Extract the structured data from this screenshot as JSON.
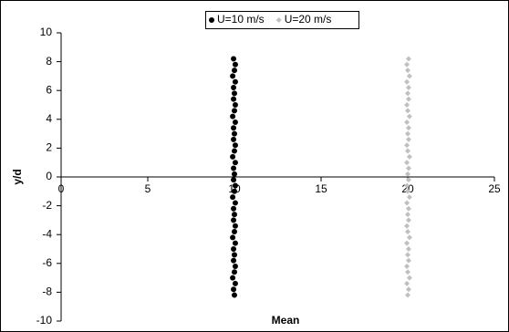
{
  "chart_data": {
    "type": "scatter",
    "x_label": "Mean",
    "y_label": "y/d",
    "xlim": [
      0,
      25
    ],
    "xticks": [
      0,
      5,
      10,
      15,
      20,
      25
    ],
    "ylim": [
      -10,
      10
    ],
    "yticks": [
      -10,
      -8,
      -6,
      -4,
      -2,
      0,
      2,
      4,
      6,
      8,
      10
    ],
    "legend": "top",
    "series": [
      {
        "name": "U=10 m/s",
        "color": "#000000",
        "marker": "circle",
        "x": [
          10,
          9.95,
          10.05,
          9.9,
          10,
          10.05,
          9.95,
          10,
          9.95,
          10.05,
          9.9,
          10,
          10.05,
          9.95,
          10,
          9.95,
          10.05,
          9.9,
          10,
          10.05,
          9.95,
          10,
          9.95,
          10.05,
          9.9,
          10,
          10.05,
          9.95,
          10,
          9.95,
          10.05,
          9.9,
          10,
          10.05,
          9.95,
          10,
          9.95,
          10.05,
          9.9,
          10,
          10.05,
          9.95
        ],
        "values": [
          -8.2,
          -7.8,
          -7.4,
          -7,
          -6.6,
          -6.2,
          -5.8,
          -5.4,
          -5,
          -4.6,
          -4.2,
          -3.8,
          -3.4,
          -3,
          -2.6,
          -2.2,
          -1.8,
          -1.4,
          -1,
          -0.6,
          -0.2,
          0.2,
          0.6,
          1,
          1.4,
          1.8,
          2.2,
          2.6,
          3,
          3.4,
          3.8,
          4.2,
          4.6,
          5,
          5.4,
          5.8,
          6.2,
          6.6,
          7,
          7.4,
          7.8,
          8.2
        ]
      },
      {
        "name": "U=20 m/s",
        "color": "#c0c0c0",
        "marker": "diamond",
        "x": [
          20,
          20.05,
          19.95,
          20.1,
          20,
          19.95,
          20.05,
          20,
          20.05,
          19.95,
          20.1,
          20,
          19.95,
          20.05,
          20,
          20.05,
          19.95,
          20.1,
          20,
          19.95,
          20.05,
          20,
          20.05,
          19.95,
          20.1,
          20,
          19.95,
          20.05,
          20,
          20.05,
          19.95,
          20.1,
          20,
          19.95,
          20.05,
          20,
          20.05,
          19.95,
          20.1,
          20,
          19.95,
          20.05
        ],
        "values": [
          -8.2,
          -7.8,
          -7.4,
          -7,
          -6.6,
          -6.2,
          -5.8,
          -5.4,
          -5,
          -4.6,
          -4.2,
          -3.8,
          -3.4,
          -3,
          -2.6,
          -2.2,
          -1.8,
          -1.4,
          -1,
          -0.6,
          -0.2,
          0.2,
          0.6,
          1,
          1.4,
          1.8,
          2.2,
          2.6,
          3,
          3.4,
          3.8,
          4.2,
          4.6,
          5,
          5.4,
          5.8,
          6.2,
          6.6,
          7,
          7.4,
          7.8,
          8.2
        ]
      }
    ]
  }
}
